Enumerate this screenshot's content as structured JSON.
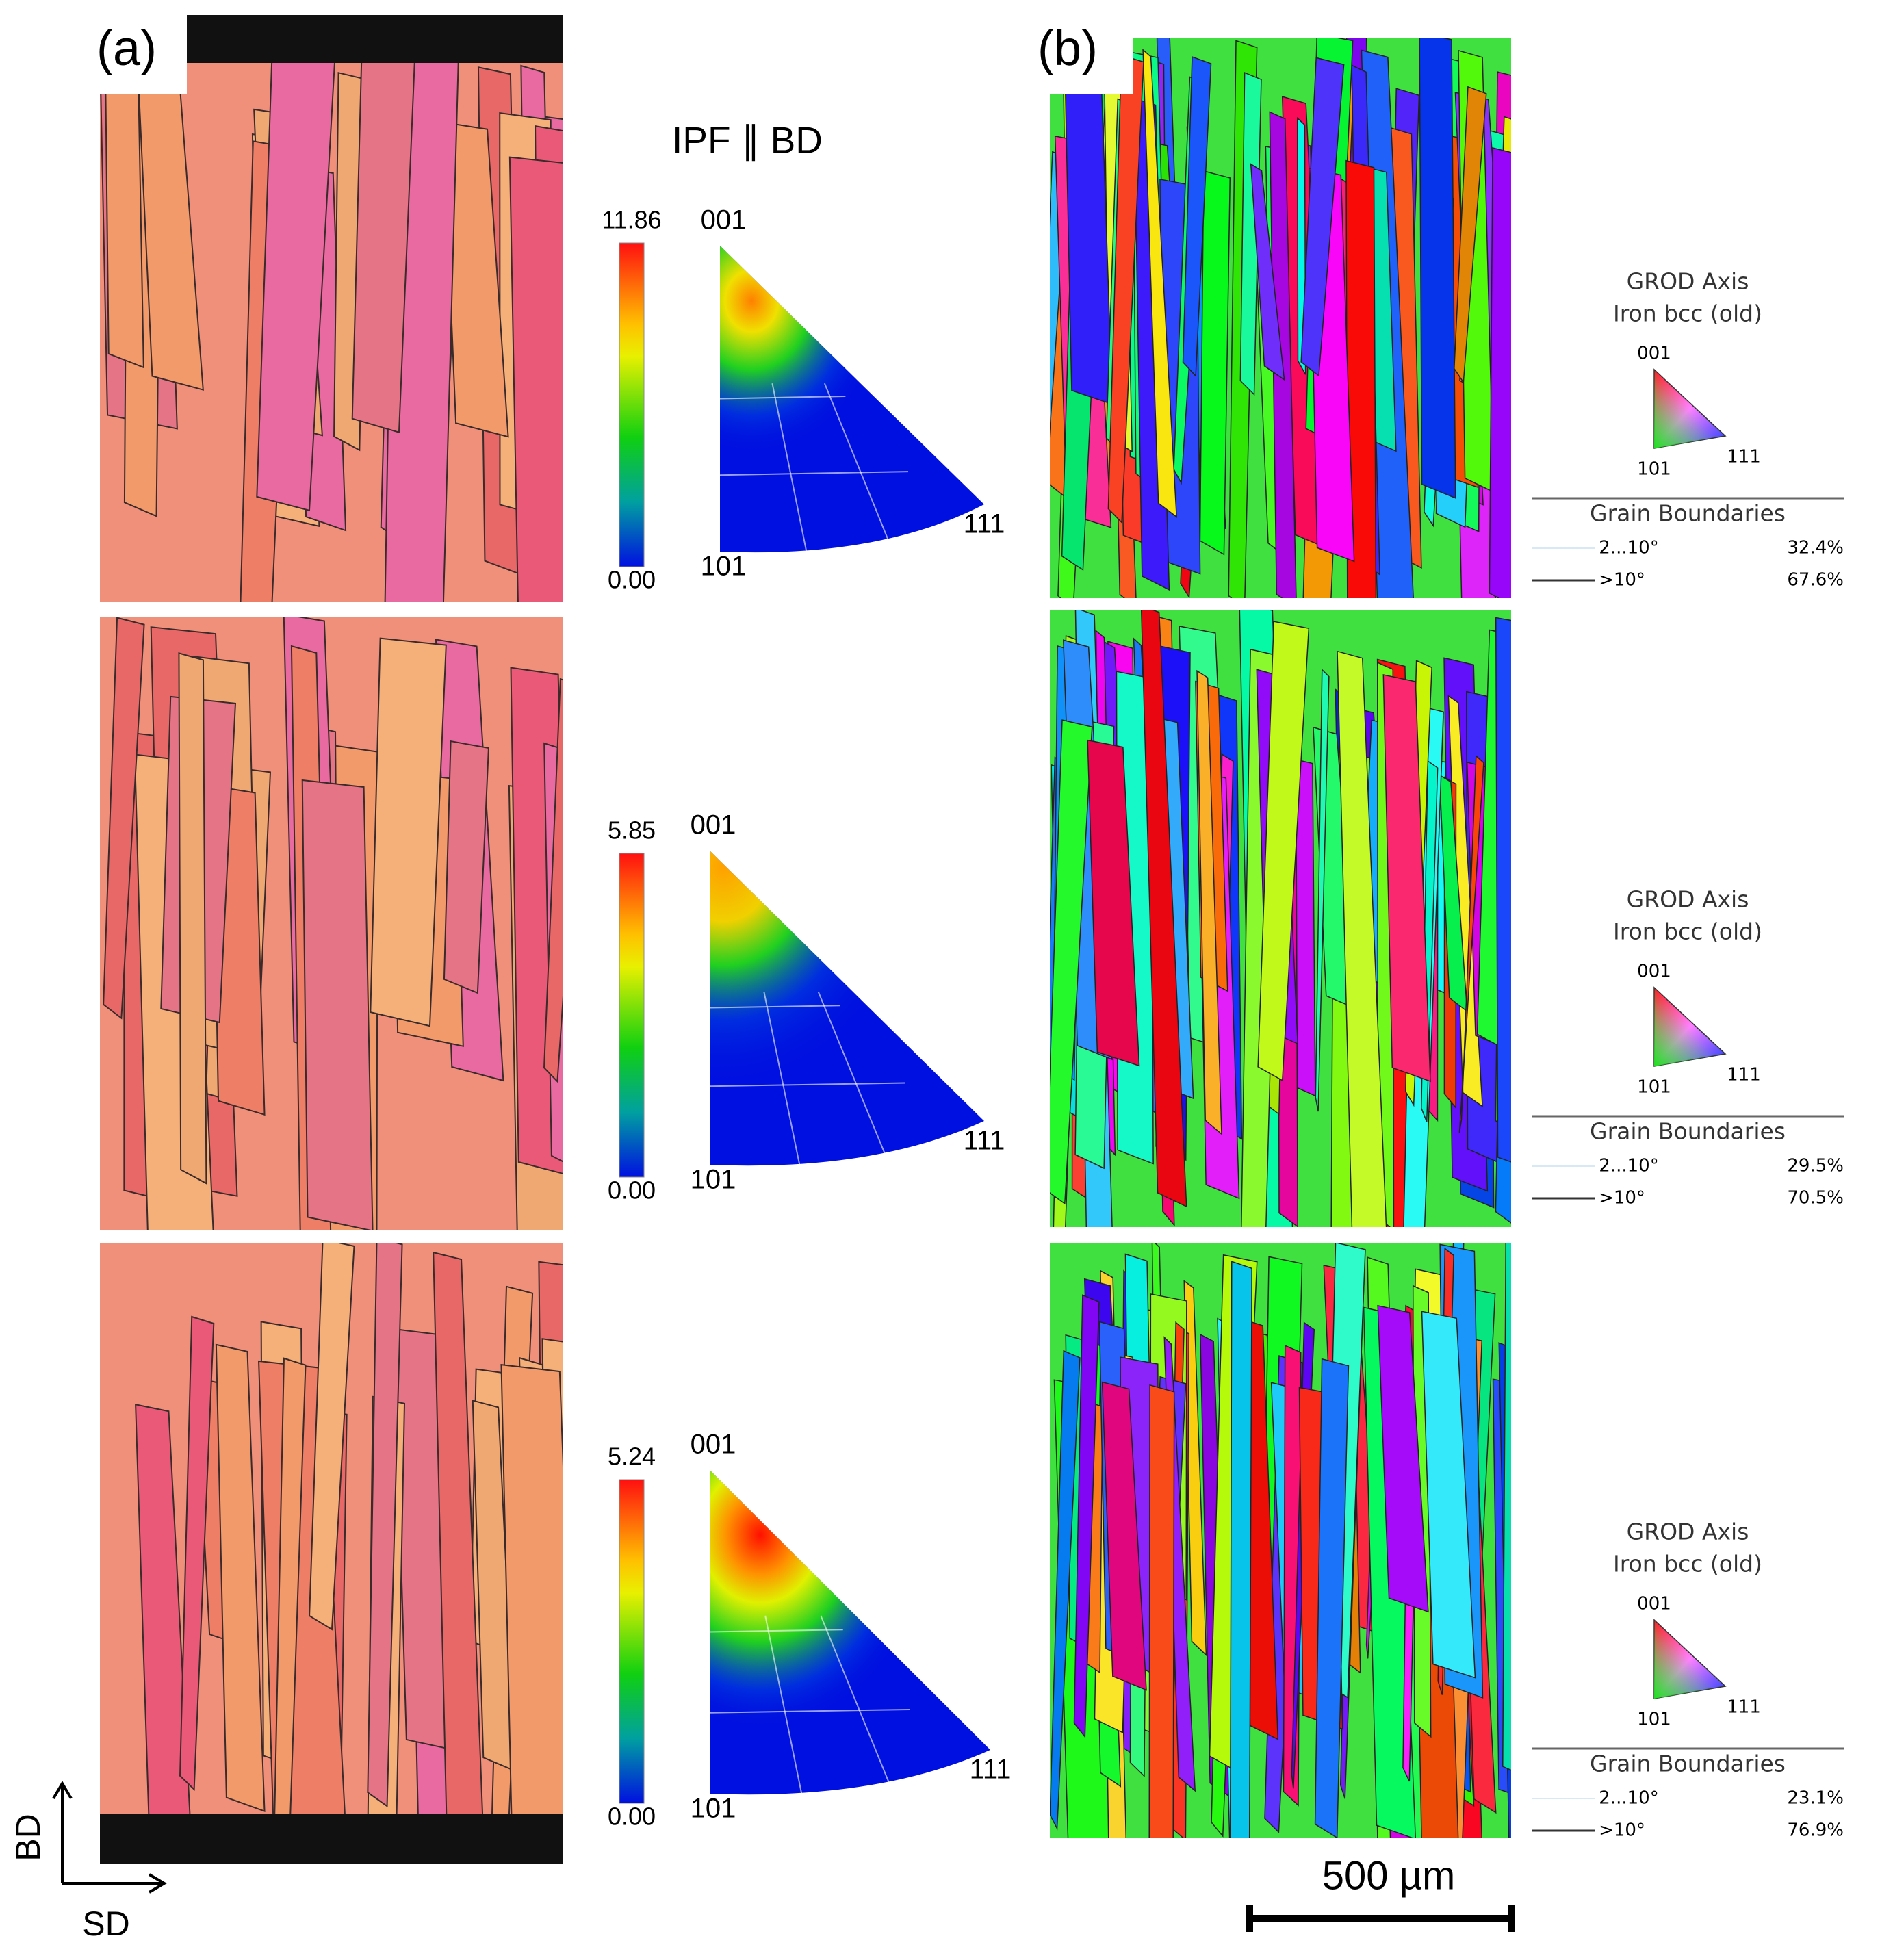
{
  "panel_a": {
    "label": "(a)",
    "ipf_title": "IPF ∥ BD"
  },
  "panel_b": {
    "label": "(b)"
  },
  "axes": {
    "vertical": "BD",
    "horizontal": "SD"
  },
  "scale_bar": "500 µm",
  "rows": [
    {
      "colorbar_max": "11.86",
      "colorbar_min": "0.00",
      "ipf_labels": [
        "001",
        "101",
        "111"
      ],
      "grod": {
        "title": "GROD Axis",
        "phase": "Iron bcc (old)",
        "axis_labels": [
          "001",
          "101",
          "111"
        ],
        "boundaries_title": "Grain Boundaries",
        "low_angle": "2...10°",
        "low_fraction": "32.4%",
        "high_angle": ">10°",
        "high_fraction": "67.6%"
      }
    },
    {
      "colorbar_max": "5.85",
      "colorbar_min": "0.00",
      "ipf_labels": [
        "001",
        "101",
        "111"
      ],
      "grod": {
        "title": "GROD Axis",
        "phase": "Iron bcc (old)",
        "axis_labels": [
          "001",
          "101",
          "111"
        ],
        "boundaries_title": "Grain Boundaries",
        "low_angle": "2...10°",
        "low_fraction": "29.5%",
        "high_angle": ">10°",
        "high_fraction": "70.5%"
      }
    },
    {
      "colorbar_max": "5.24",
      "colorbar_min": "0.00",
      "ipf_labels": [
        "001",
        "101",
        "111"
      ],
      "grod": {
        "title": "GROD Axis",
        "phase": "Iron bcc (old)",
        "axis_labels": [
          "001",
          "101",
          "111"
        ],
        "boundaries_title": "Grain Boundaries",
        "low_angle": "2...10°",
        "low_fraction": "23.1%",
        "high_angle": ">10°",
        "high_fraction": "76.9%"
      }
    }
  ]
}
